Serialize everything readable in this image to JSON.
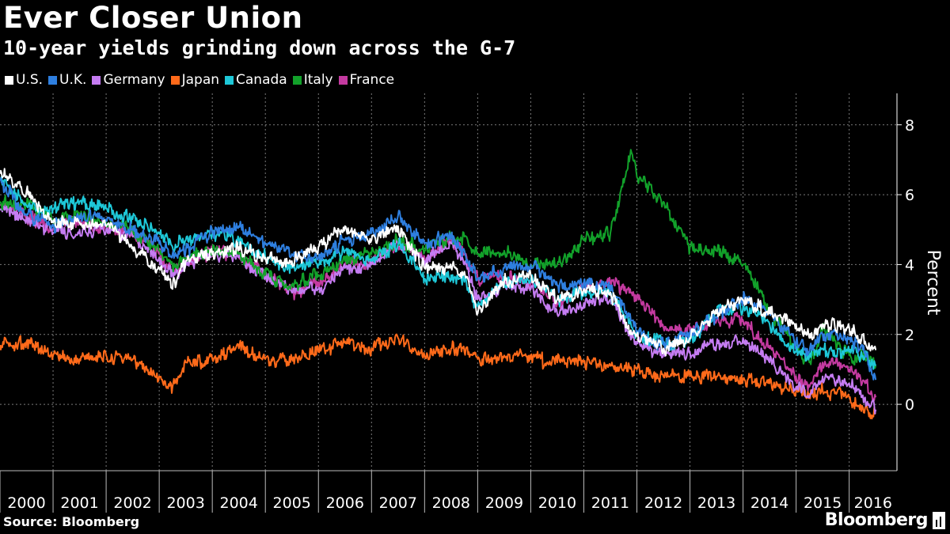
{
  "header": {
    "title": "Ever Closer Union",
    "subtitle": "10-year yields grinding down across the G-7"
  },
  "footer": {
    "source": "Source: Bloomberg",
    "brand": "Bloomberg"
  },
  "colors": {
    "background": "#000000",
    "grid": "#7a7a7a",
    "text": "#ffffff"
  },
  "chart_data": {
    "type": "line",
    "title": "Ever Closer Union",
    "subtitle": "10-year yields grinding down across the G-7",
    "ylabel": "Percent",
    "xlabel": "",
    "xlim": [
      2000.0,
      2016.9
    ],
    "ylim": [
      -1.9,
      8.9
    ],
    "yticks": [
      0,
      2,
      4,
      6,
      8
    ],
    "xticks": [
      "2000",
      "2001",
      "2002",
      "2003",
      "2004",
      "2005",
      "2006",
      "2007",
      "2008",
      "2009",
      "2010",
      "2011",
      "2012",
      "2013",
      "2014",
      "2015",
      "2016"
    ],
    "grid": true,
    "legend_position": "top-left",
    "x": [
      2000.0,
      2000.5,
      2001.0,
      2001.5,
      2002.0,
      2002.5,
      2003.0,
      2003.25,
      2003.5,
      2004.0,
      2004.5,
      2005.0,
      2005.5,
      2006.0,
      2006.5,
      2007.0,
      2007.5,
      2008.0,
      2008.5,
      2008.75,
      2009.0,
      2009.5,
      2010.0,
      2010.5,
      2011.0,
      2011.5,
      2011.9,
      2012.0,
      2012.5,
      2013.0,
      2013.5,
      2014.0,
      2014.5,
      2015.0,
      2015.25,
      2015.5,
      2016.0,
      2016.3,
      2016.5
    ],
    "series": [
      {
        "name": "U.S.",
        "color": "#ffffff",
        "values": [
          6.6,
          6.1,
          5.2,
          5.2,
          5.1,
          4.5,
          3.9,
          3.3,
          4.1,
          4.3,
          4.5,
          4.2,
          4.1,
          4.5,
          5.1,
          4.7,
          5.1,
          3.9,
          3.9,
          3.8,
          2.6,
          3.5,
          3.7,
          3.0,
          3.3,
          3.2,
          2.0,
          2.0,
          1.6,
          1.9,
          2.6,
          3.0,
          2.6,
          2.3,
          1.9,
          2.3,
          2.2,
          1.8,
          1.55
        ]
      },
      {
        "name": "U.K.",
        "color": "#2e7fe0",
        "values": [
          6.4,
          5.4,
          5.1,
          5.4,
          5.3,
          5.0,
          4.6,
          4.3,
          4.4,
          4.9,
          5.1,
          4.6,
          4.3,
          4.2,
          4.7,
          4.9,
          5.4,
          4.6,
          4.8,
          4.4,
          3.6,
          3.9,
          4.0,
          3.4,
          3.5,
          3.4,
          2.4,
          2.1,
          1.7,
          2.0,
          2.5,
          3.0,
          2.7,
          1.8,
          1.5,
          2.0,
          1.9,
          1.5,
          0.7
        ]
      },
      {
        "name": "Germany",
        "color": "#c57cf2",
        "values": [
          5.6,
          5.3,
          4.9,
          5.0,
          5.0,
          4.8,
          4.2,
          3.7,
          4.0,
          4.3,
          4.2,
          3.6,
          3.2,
          3.3,
          3.9,
          4.0,
          4.6,
          4.1,
          4.6,
          4.0,
          3.0,
          3.4,
          3.3,
          2.6,
          2.9,
          3.0,
          1.9,
          1.8,
          1.4,
          1.5,
          1.7,
          1.9,
          1.2,
          0.5,
          0.2,
          0.8,
          0.6,
          0.2,
          -0.15
        ]
      },
      {
        "name": "Japan",
        "color": "#ff6a1a",
        "values": [
          1.7,
          1.8,
          1.4,
          1.3,
          1.4,
          1.3,
          0.8,
          0.5,
          1.2,
          1.3,
          1.6,
          1.3,
          1.3,
          1.5,
          1.8,
          1.6,
          1.9,
          1.4,
          1.6,
          1.5,
          1.3,
          1.4,
          1.3,
          1.2,
          1.2,
          1.1,
          1.0,
          1.0,
          0.8,
          0.8,
          0.8,
          0.7,
          0.6,
          0.4,
          0.3,
          0.4,
          0.2,
          -0.1,
          -0.25
        ]
      },
      {
        "name": "Canada",
        "color": "#1ec8d8",
        "values": [
          6.4,
          5.7,
          5.6,
          5.8,
          5.6,
          5.3,
          4.9,
          4.5,
          4.7,
          4.9,
          4.7,
          4.2,
          3.9,
          4.0,
          4.4,
          4.1,
          4.6,
          3.6,
          3.7,
          3.5,
          2.8,
          3.5,
          3.6,
          3.0,
          3.2,
          3.2,
          2.2,
          2.0,
          1.8,
          1.8,
          2.6,
          2.8,
          2.3,
          1.5,
          1.4,
          1.6,
          1.5,
          1.4,
          1.1
        ]
      },
      {
        "name": "Italy",
        "color": "#12a12a",
        "values": [
          5.8,
          5.7,
          5.3,
          5.4,
          5.2,
          5.0,
          4.4,
          4.0,
          4.2,
          4.4,
          4.3,
          3.7,
          3.4,
          3.7,
          4.1,
          4.3,
          4.7,
          4.4,
          4.8,
          4.8,
          4.3,
          4.4,
          4.0,
          4.0,
          4.7,
          4.9,
          7.2,
          6.5,
          5.8,
          4.5,
          4.4,
          4.0,
          2.7,
          1.6,
          1.2,
          2.1,
          1.4,
          1.3,
          1.1
        ]
      },
      {
        "name": "France",
        "color": "#c43aa0",
        "values": [
          5.7,
          5.4,
          5.0,
          5.2,
          5.1,
          4.9,
          4.3,
          3.8,
          4.0,
          4.4,
          4.3,
          3.7,
          3.2,
          3.5,
          4.0,
          4.1,
          4.6,
          4.2,
          4.7,
          4.3,
          3.6,
          3.6,
          3.5,
          2.9,
          3.3,
          3.5,
          3.2,
          3.1,
          2.2,
          2.1,
          2.4,
          2.4,
          1.6,
          0.8,
          0.5,
          1.2,
          1.0,
          0.6,
          0.2
        ]
      }
    ]
  }
}
